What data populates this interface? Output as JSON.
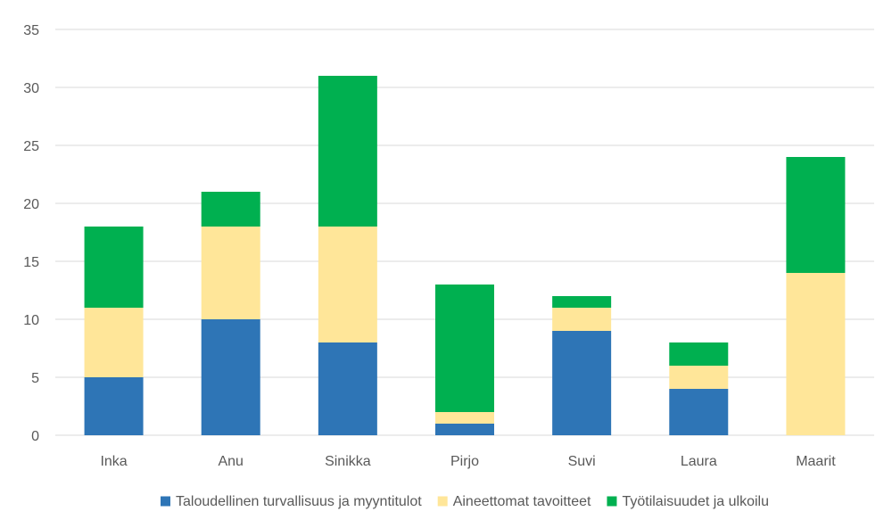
{
  "chart_data": {
    "type": "bar",
    "stacked": true,
    "categories": [
      "Inka",
      "Anu",
      "Sinikka",
      "Pirjo",
      "Suvi",
      "Laura",
      "Maarit"
    ],
    "series": [
      {
        "name": "Taloudellinen turvallisuus ja myyntitulot",
        "color": "#2E75B6",
        "values": [
          5,
          10,
          8,
          1,
          9,
          4,
          0
        ]
      },
      {
        "name": "Aineettomat tavoitteet",
        "color": "#FFE699",
        "values": [
          6,
          8,
          10,
          1,
          2,
          2,
          14
        ]
      },
      {
        "name": "Työtilaisuudet ja ulkoilu",
        "color": "#00B050",
        "values": [
          7,
          3,
          13,
          11,
          1,
          2,
          10
        ]
      }
    ],
    "ylim": [
      0,
      35
    ],
    "yticks": [
      0,
      5,
      10,
      15,
      20,
      25,
      30,
      35
    ],
    "grid": true,
    "legend_position": "bottom"
  }
}
